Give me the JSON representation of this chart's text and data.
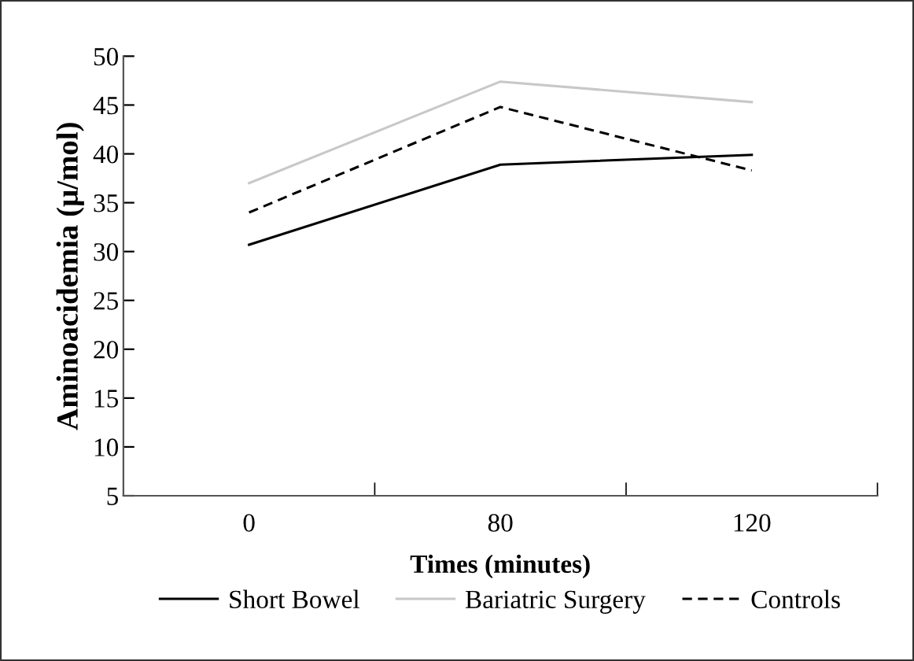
{
  "chart_data": {
    "type": "line",
    "xlabel": "Times (minutes)",
    "ylabel": "Aminoacidemia (μ/mol)",
    "categories": [
      "0",
      "80",
      "120"
    ],
    "series": [
      {
        "name": "Short Bowel",
        "color": "#000000",
        "values": [
          30.7,
          38.9,
          39.9
        ],
        "line_style": "solid"
      },
      {
        "name": "Bariatric Surgery",
        "color": "#c8c8c8",
        "values": [
          37.0,
          47.4,
          45.3
        ],
        "line_style": "solid"
      },
      {
        "name": "Controls",
        "color": "#000000",
        "values": [
          34.0,
          44.8,
          38.3
        ],
        "line_style": "dashed"
      }
    ],
    "ylim": [
      5,
      50
    ],
    "yticks": [
      5,
      10,
      15,
      20,
      25,
      30,
      35,
      40,
      45,
      50
    ],
    "grid": false,
    "legend": "bottom",
    "marker": "none"
  }
}
